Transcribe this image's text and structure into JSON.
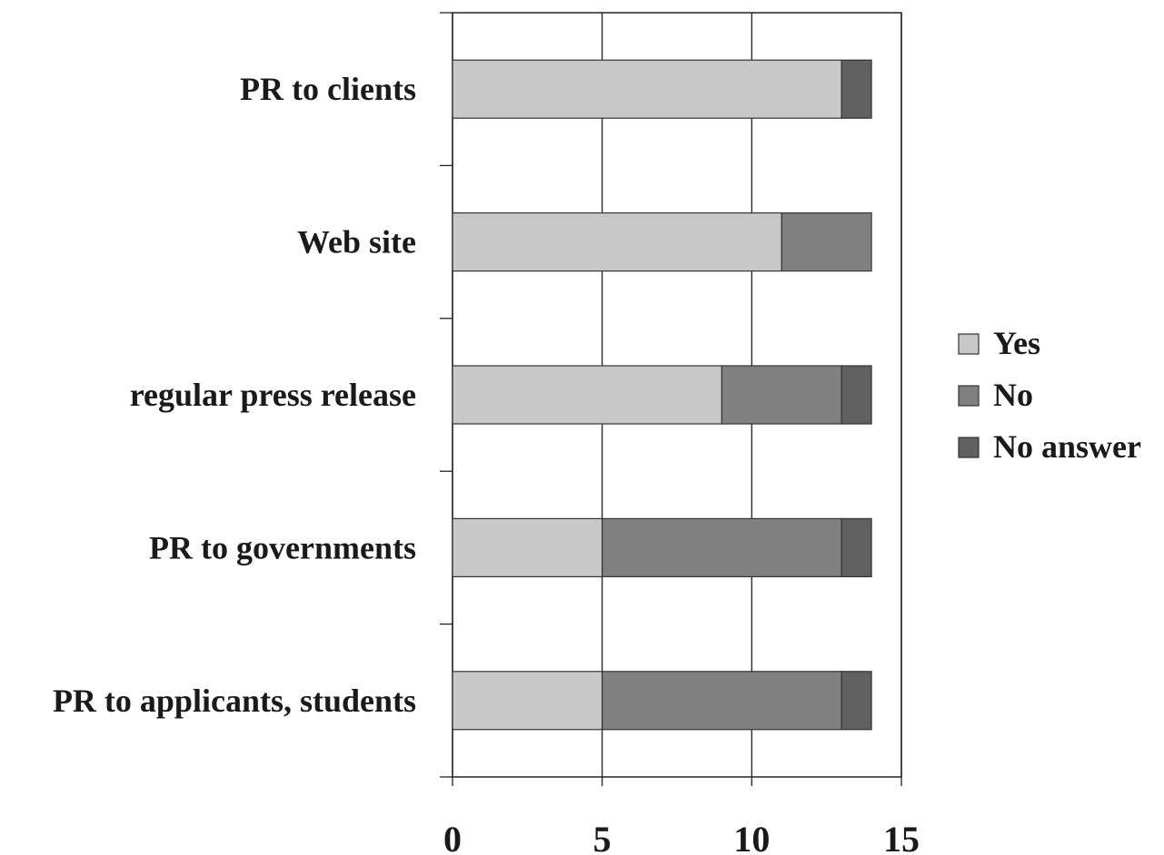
{
  "chart_data": {
    "type": "bar",
    "orientation": "horizontal",
    "stacked": true,
    "categories": [
      "PR to clients",
      "Web site",
      "regular press release",
      "PR to governments",
      "PR to applicants, students"
    ],
    "series": [
      {
        "name": "Yes",
        "values": [
          13,
          11,
          9,
          5,
          5
        ],
        "color": "#c8c8c8"
      },
      {
        "name": "No",
        "values": [
          0,
          3,
          4,
          8,
          8
        ],
        "color": "#808080"
      },
      {
        "name": "No answer",
        "values": [
          1,
          0,
          1,
          1,
          1
        ],
        "color": "#606060"
      }
    ],
    "xlim": [
      0,
      15
    ],
    "xticks": [
      "0",
      "5",
      "10",
      "15"
    ],
    "grid": "vertical",
    "legend": "right",
    "title": "",
    "xlabel": "",
    "ylabel": ""
  }
}
